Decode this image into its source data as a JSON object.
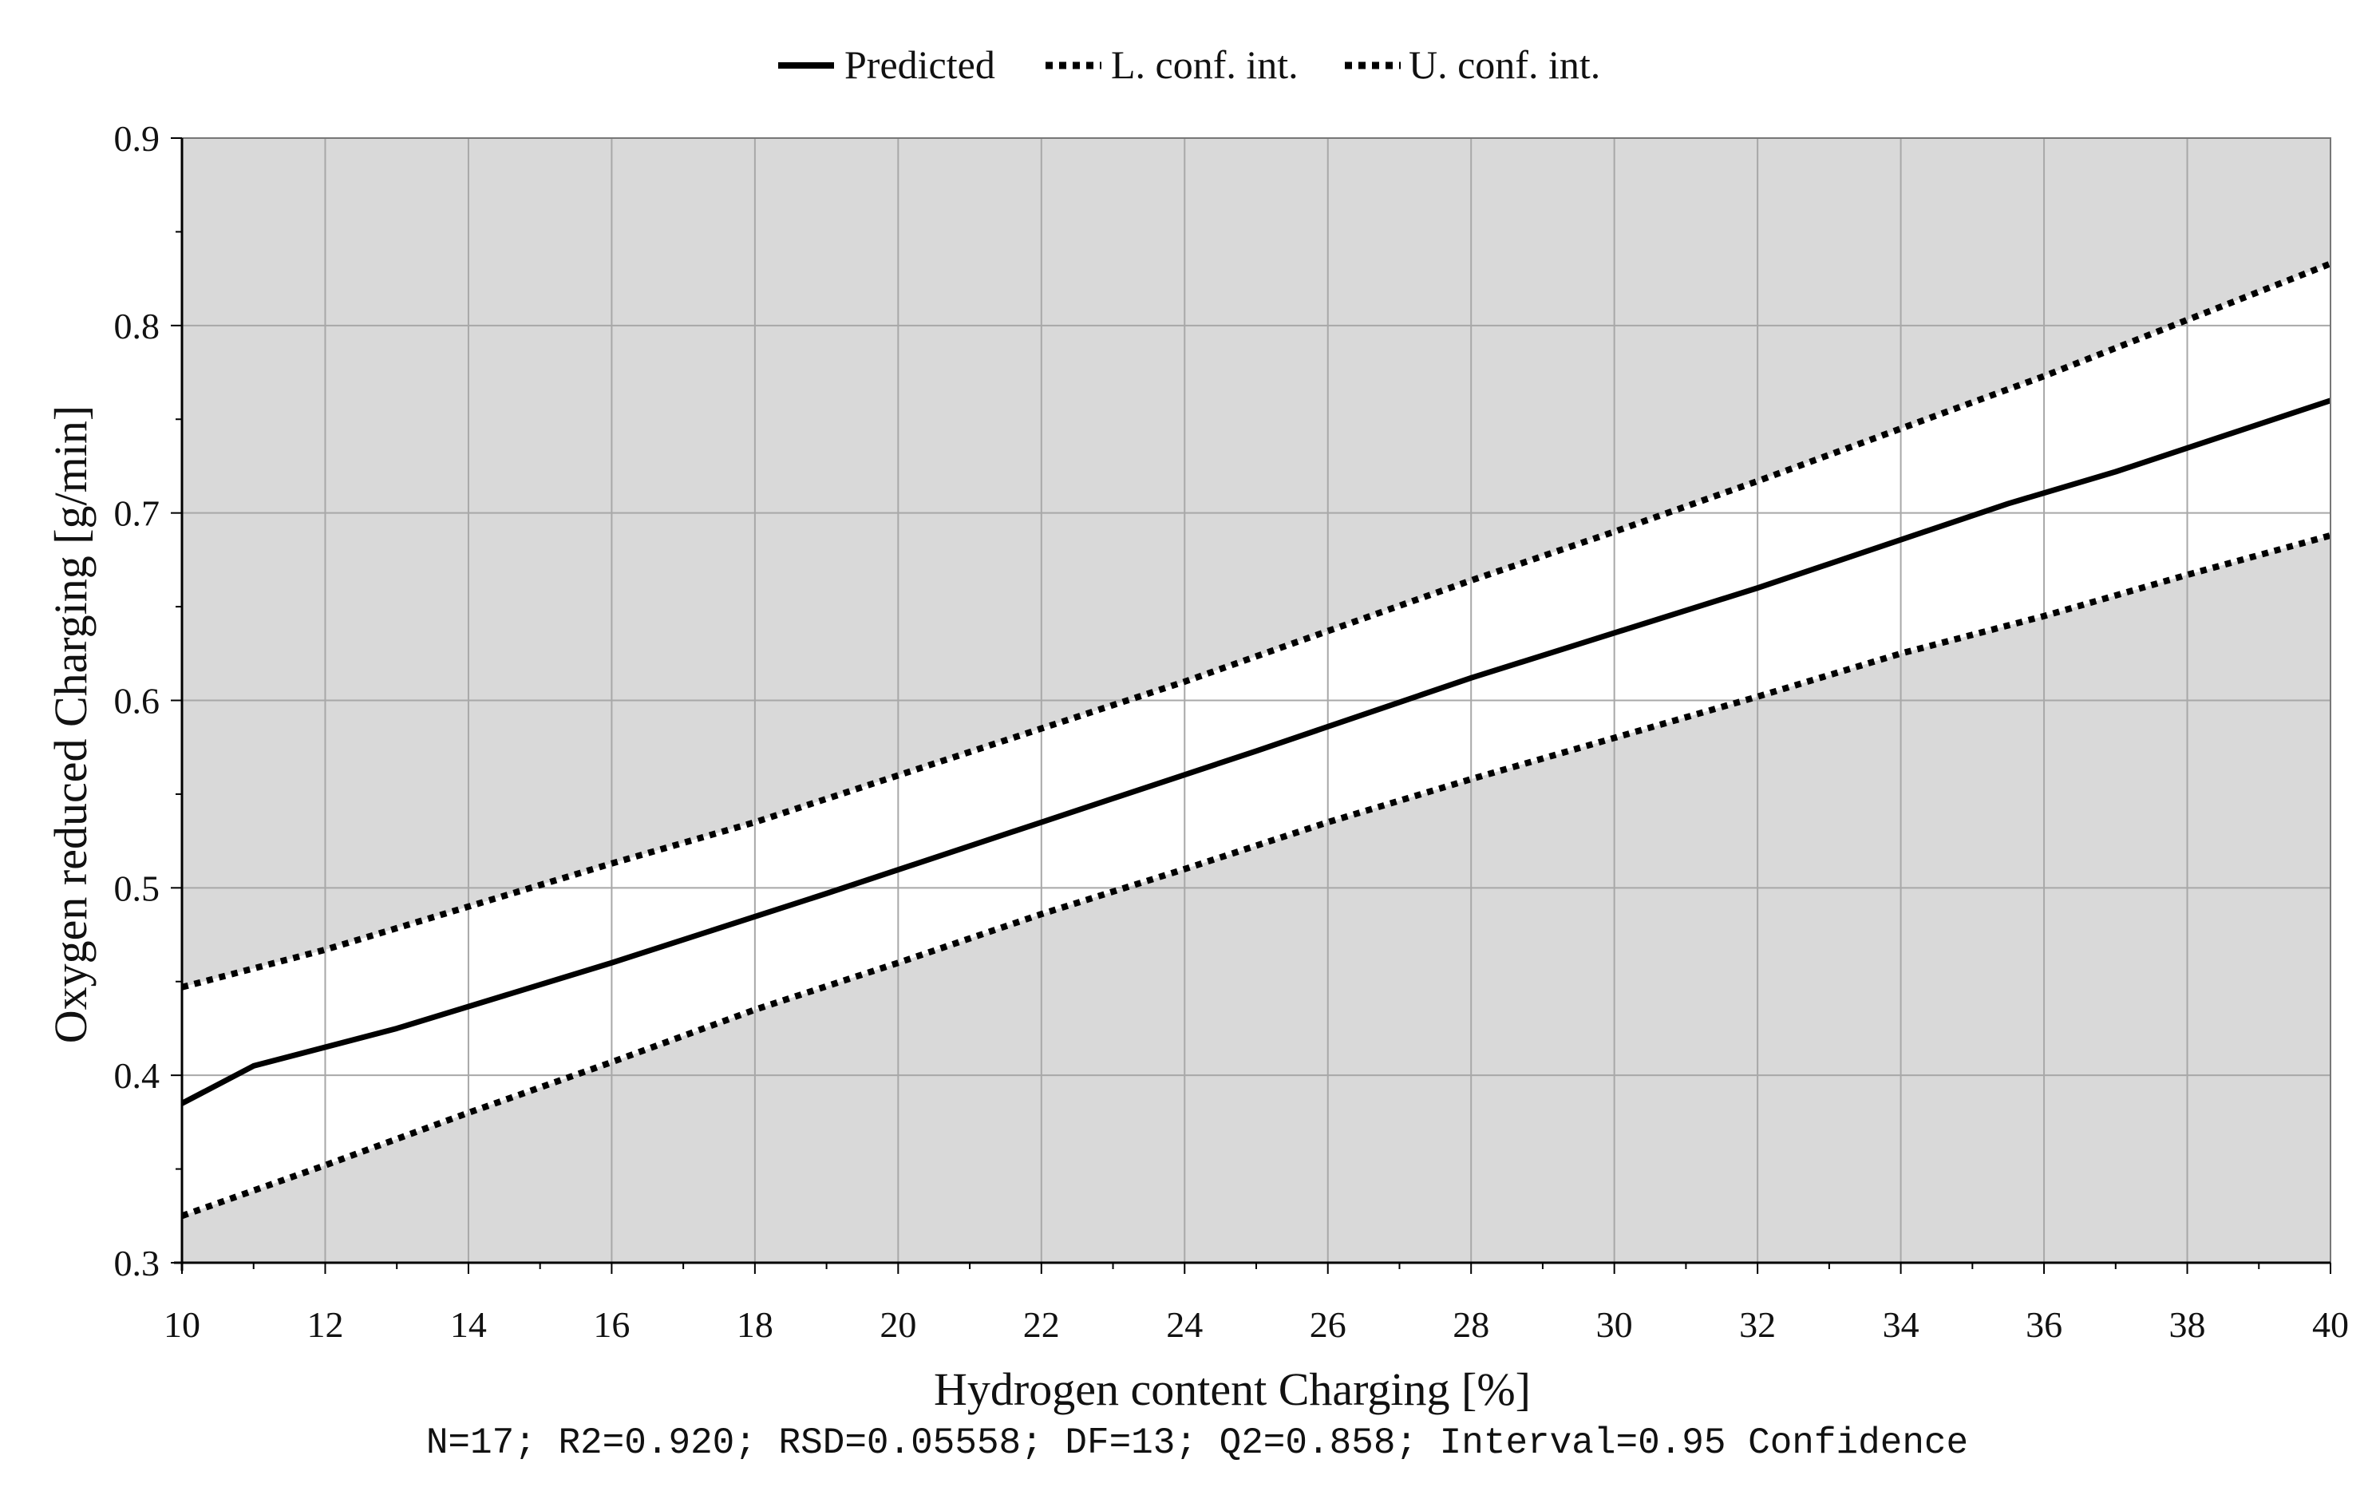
{
  "chart_data": {
    "type": "line",
    "xlabel": "Hydrogen content Charging [%]",
    "ylabel": "Oxygen reduced Charging [g/min]",
    "footer": "N=17; R2=0.920; RSD=0.05558; DF=13; Q2=0.858; Interval=0.95 Confidence",
    "xlim": [
      10,
      40
    ],
    "ylim": [
      0.3,
      0.9
    ],
    "x_ticks": [
      "10",
      "12",
      "14",
      "16",
      "18",
      "20",
      "22",
      "24",
      "26",
      "28",
      "30",
      "32",
      "34",
      "36",
      "38",
      "40"
    ],
    "y_ticks": [
      "0.3",
      "0.4",
      "0.5",
      "0.6",
      "0.7",
      "0.8",
      "0.9"
    ],
    "grid": true,
    "legend_position": "top-center",
    "background_outside_band": "#d9d9d9",
    "band_fill": "#ffffff",
    "series": [
      {
        "name": "Predicted",
        "style": "solid",
        "color": "#000000",
        "x": [
          10,
          11,
          13,
          16,
          19,
          22,
          25,
          28,
          29.5,
          32,
          35.5,
          37,
          40
        ],
        "y": [
          0.385,
          0.405,
          0.425,
          0.46,
          0.497,
          0.535,
          0.573,
          0.612,
          0.63,
          0.66,
          0.705,
          0.722,
          0.76
        ]
      },
      {
        "name": "L. conf. int.",
        "style": "dotted",
        "color": "#000000",
        "x": [
          10,
          12,
          14,
          16,
          18,
          20,
          22,
          24,
          26,
          28,
          30,
          32,
          34,
          36,
          38,
          40
        ],
        "y": [
          0.325,
          0.352,
          0.38,
          0.407,
          0.435,
          0.46,
          0.486,
          0.51,
          0.535,
          0.558,
          0.58,
          0.602,
          0.625,
          0.645,
          0.667,
          0.688
        ]
      },
      {
        "name": "U. conf. int.",
        "style": "dotted",
        "color": "#000000",
        "x": [
          10,
          12,
          14,
          16,
          18,
          20,
          22,
          24,
          26,
          28,
          30,
          32,
          34,
          36,
          38,
          40
        ],
        "y": [
          0.447,
          0.467,
          0.49,
          0.513,
          0.535,
          0.56,
          0.585,
          0.61,
          0.637,
          0.664,
          0.69,
          0.717,
          0.745,
          0.773,
          0.803,
          0.833
        ]
      }
    ]
  }
}
